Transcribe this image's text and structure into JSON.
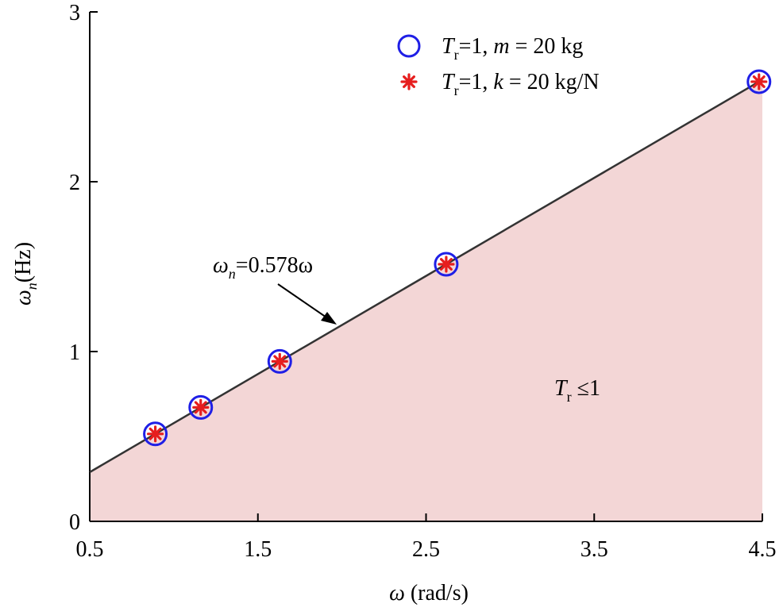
{
  "chart_data": {
    "type": "line",
    "title": "",
    "xlabel": {
      "symbol": "ω",
      "units": "(rad/s)"
    },
    "ylabel": {
      "symbol": "ω",
      "subscript": "n",
      "units": "(Hz)"
    },
    "xlim": [
      0.5,
      4.5
    ],
    "ylim": [
      0,
      3
    ],
    "xticks": [
      "0.5",
      "1.5",
      "2.5",
      "3.5",
      "4.5"
    ],
    "yticks": [
      "0",
      "1",
      "2",
      "3"
    ],
    "grid": false,
    "legend_position": "top-right",
    "line": {
      "slope": 0.578,
      "intercept": 0,
      "label_symbol": "ω",
      "label_subscript": "n",
      "label_rest": "=0.578ω"
    },
    "series": [
      {
        "name": {
          "sym": "T",
          "sub": "r",
          "rest1": "=1, ",
          "var": "m",
          "rest2": " = 20 kg"
        },
        "marker": "circle",
        "color": "#1f1fe6",
        "points": [
          [
            0.89,
            0.515
          ],
          [
            1.16,
            0.671
          ],
          [
            1.63,
            0.942
          ],
          [
            2.62,
            1.514
          ],
          [
            4.48,
            2.589
          ]
        ]
      },
      {
        "name": {
          "sym": "T",
          "sub": "r",
          "rest1": "=1, ",
          "var": "k",
          "rest2": " = 20 kg/N"
        },
        "marker": "asterisk",
        "color": "#e61e1e",
        "points": [
          [
            0.89,
            0.515
          ],
          [
            1.16,
            0.671
          ],
          [
            1.63,
            0.942
          ],
          [
            2.62,
            1.514
          ],
          [
            4.48,
            2.589
          ]
        ]
      }
    ],
    "region": {
      "label_sym": "T",
      "label_sub": "r",
      "label_rest": " ≤1",
      "fill": "#f3d6d6"
    }
  }
}
